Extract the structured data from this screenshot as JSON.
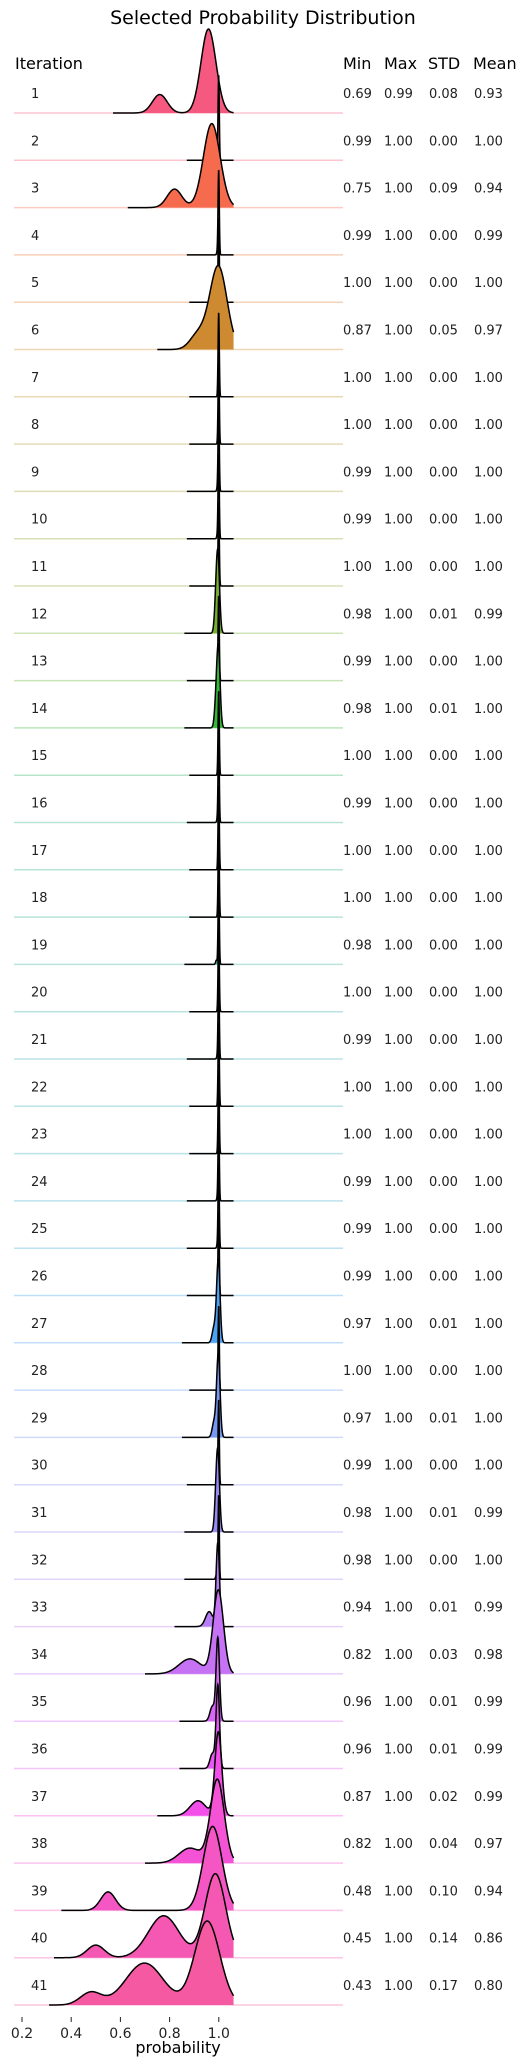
{
  "chart_data": {
    "type": "ridgeline",
    "title": "Selected Probability Distribution",
    "xlabel": "probability",
    "row_header": "Iteration",
    "stat_headers": [
      "Min",
      "Max",
      "STD",
      "Mean"
    ],
    "x_ticks": [
      0.2,
      0.4,
      0.6,
      0.8,
      1.0
    ],
    "xlim": [
      0.2,
      1.2
    ],
    "rows": [
      {
        "iteration": "1",
        "min": "0.69",
        "max": "0.99",
        "std": "0.08",
        "mean": "0.93",
        "color": "#f5597f"
      },
      {
        "iteration": "2",
        "min": "0.99",
        "max": "1.00",
        "std": "0.00",
        "mean": "1.00",
        "color": "#f5596a"
      },
      {
        "iteration": "3",
        "min": "0.75",
        "max": "1.00",
        "std": "0.09",
        "mean": "0.94",
        "color": "#f66a4e"
      },
      {
        "iteration": "4",
        "min": "0.99",
        "max": "1.00",
        "std": "0.00",
        "mean": "0.99",
        "color": "#ea7636"
      },
      {
        "iteration": "5",
        "min": "1.00",
        "max": "1.00",
        "std": "0.00",
        "mean": "1.00",
        "color": "#dd8031"
      },
      {
        "iteration": "6",
        "min": "0.87",
        "max": "1.00",
        "std": "0.05",
        "mean": "0.97",
        "color": "#ce8a31"
      },
      {
        "iteration": "7",
        "min": "1.00",
        "max": "1.00",
        "std": "0.00",
        "mean": "1.00",
        "color": "#c19231"
      },
      {
        "iteration": "8",
        "min": "1.00",
        "max": "1.00",
        "std": "0.00",
        "mean": "1.00",
        "color": "#b49931"
      },
      {
        "iteration": "9",
        "min": "0.99",
        "max": "1.00",
        "std": "0.00",
        "mean": "1.00",
        "color": "#a79f31"
      },
      {
        "iteration": "10",
        "min": "0.99",
        "max": "1.00",
        "std": "0.00",
        "mean": "1.00",
        "color": "#99a431"
      },
      {
        "iteration": "11",
        "min": "1.00",
        "max": "1.00",
        "std": "0.00",
        "mean": "1.00",
        "color": "#89a931"
      },
      {
        "iteration": "12",
        "min": "0.98",
        "max": "1.00",
        "std": "0.01",
        "mean": "0.99",
        "color": "#77ae31"
      },
      {
        "iteration": "13",
        "min": "0.99",
        "max": "1.00",
        "std": "0.00",
        "mean": "1.00",
        "color": "#5fb331"
      },
      {
        "iteration": "14",
        "min": "0.98",
        "max": "1.00",
        "std": "0.01",
        "mean": "1.00",
        "color": "#36b739"
      },
      {
        "iteration": "15",
        "min": "1.00",
        "max": "1.00",
        "std": "0.00",
        "mean": "1.00",
        "color": "#33b566"
      },
      {
        "iteration": "16",
        "min": "0.99",
        "max": "1.00",
        "std": "0.00",
        "mean": "1.00",
        "color": "#34b47a"
      },
      {
        "iteration": "17",
        "min": "1.00",
        "max": "1.00",
        "std": "0.00",
        "mean": "1.00",
        "color": "#35b389"
      },
      {
        "iteration": "18",
        "min": "1.00",
        "max": "1.00",
        "std": "0.00",
        "mean": "1.00",
        "color": "#35b295"
      },
      {
        "iteration": "19",
        "min": "0.98",
        "max": "1.00",
        "std": "0.00",
        "mean": "1.00",
        "color": "#36b19f"
      },
      {
        "iteration": "20",
        "min": "1.00",
        "max": "1.00",
        "std": "0.00",
        "mean": "1.00",
        "color": "#36b0a9"
      },
      {
        "iteration": "21",
        "min": "0.99",
        "max": "1.00",
        "std": "0.00",
        "mean": "1.00",
        "color": "#37afb2"
      },
      {
        "iteration": "22",
        "min": "1.00",
        "max": "1.00",
        "std": "0.00",
        "mean": "1.00",
        "color": "#38aebb"
      },
      {
        "iteration": "23",
        "min": "1.00",
        "max": "1.00",
        "std": "0.00",
        "mean": "1.00",
        "color": "#38adc5"
      },
      {
        "iteration": "24",
        "min": "0.99",
        "max": "1.00",
        "std": "0.00",
        "mean": "1.00",
        "color": "#39abd0"
      },
      {
        "iteration": "25",
        "min": "0.99",
        "max": "1.00",
        "std": "0.00",
        "mean": "1.00",
        "color": "#3ba9dd"
      },
      {
        "iteration": "26",
        "min": "0.99",
        "max": "1.00",
        "std": "0.00",
        "mean": "1.00",
        "color": "#3da6ed"
      },
      {
        "iteration": "27",
        "min": "0.97",
        "max": "1.00",
        "std": "0.01",
        "mean": "1.00",
        "color": "#4ca2f4"
      },
      {
        "iteration": "28",
        "min": "1.00",
        "max": "1.00",
        "std": "0.00",
        "mean": "1.00",
        "color": "#649df4"
      },
      {
        "iteration": "29",
        "min": "0.97",
        "max": "1.00",
        "std": "0.01",
        "mean": "1.00",
        "color": "#7798f4"
      },
      {
        "iteration": "30",
        "min": "0.99",
        "max": "1.00",
        "std": "0.00",
        "mean": "1.00",
        "color": "#8892f4"
      },
      {
        "iteration": "31",
        "min": "0.98",
        "max": "1.00",
        "std": "0.01",
        "mean": "0.99",
        "color": "#988cf4"
      },
      {
        "iteration": "32",
        "min": "0.98",
        "max": "1.00",
        "std": "0.00",
        "mean": "1.00",
        "color": "#a785f4"
      },
      {
        "iteration": "33",
        "min": "0.94",
        "max": "1.00",
        "std": "0.01",
        "mean": "0.99",
        "color": "#b67df4"
      },
      {
        "iteration": "34",
        "min": "0.82",
        "max": "1.00",
        "std": "0.03",
        "mean": "0.98",
        "color": "#c573f4"
      },
      {
        "iteration": "35",
        "min": "0.96",
        "max": "1.00",
        "std": "0.01",
        "mean": "0.99",
        "color": "#d567f4"
      },
      {
        "iteration": "36",
        "min": "0.96",
        "max": "1.00",
        "std": "0.01",
        "mean": "0.99",
        "color": "#e657f4"
      },
      {
        "iteration": "37",
        "min": "0.87",
        "max": "1.00",
        "std": "0.02",
        "mean": "0.99",
        "color": "#f34ee9"
      },
      {
        "iteration": "38",
        "min": "0.82",
        "max": "1.00",
        "std": "0.04",
        "mean": "0.97",
        "color": "#f453d5"
      },
      {
        "iteration": "39",
        "min": "0.48",
        "max": "1.00",
        "std": "0.10",
        "mean": "0.94",
        "color": "#f456c3"
      },
      {
        "iteration": "40",
        "min": "0.45",
        "max": "1.00",
        "std": "0.14",
        "mean": "0.86",
        "color": "#f558b2"
      },
      {
        "iteration": "41",
        "min": "0.43",
        "max": "1.00",
        "std": "0.17",
        "mean": "0.80",
        "color": "#f559a1"
      }
    ]
  }
}
